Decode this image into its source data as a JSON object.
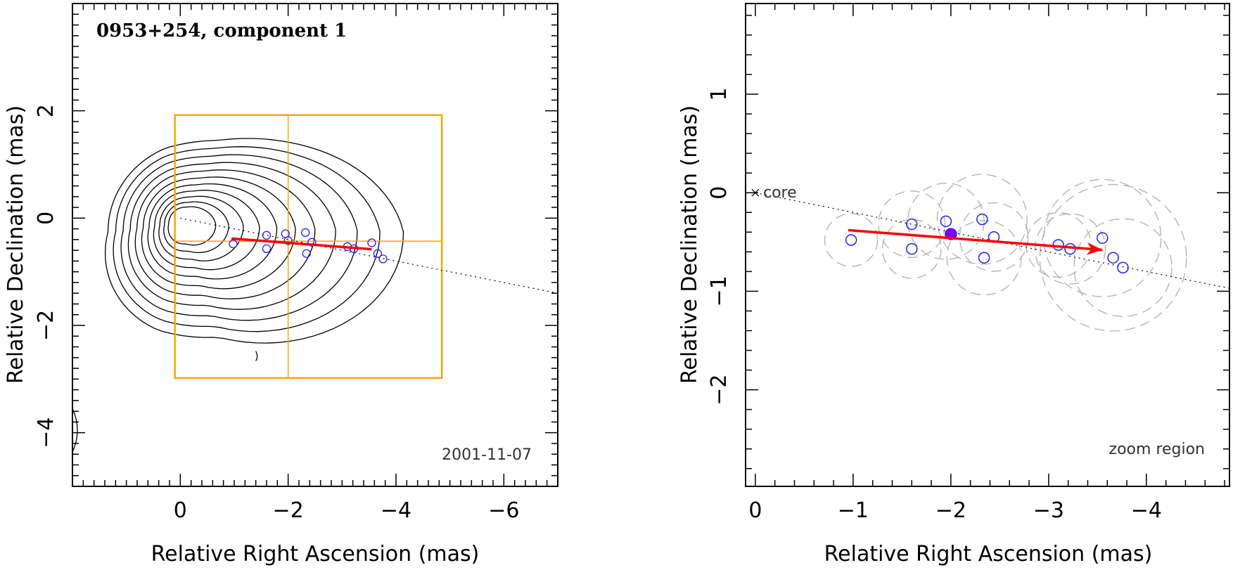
{
  "chart_data": [
    {
      "type": "scatter",
      "panel": "left",
      "title": "0953+254, component 1",
      "epoch": "2001-11-07",
      "xlabel": "Relative Right Ascension (mas)",
      "ylabel": "Relative Declination (mas)",
      "xlim": [
        2.0,
        -7.0
      ],
      "ylim": [
        -5.0,
        4.0
      ],
      "xticks": [
        0,
        -2,
        -4,
        -6
      ],
      "xtick_labels": [
        "0",
        "−2",
        "−4",
        "−6"
      ],
      "yticks": [
        -4,
        -2,
        0,
        2
      ],
      "ytick_labels": [
        "−4",
        "−2",
        "0",
        "2"
      ],
      "zoom_box": {
        "x": [
          0.1,
          -4.85
        ],
        "y": [
          -2.98,
          1.92
        ],
        "cross_x": -2.0,
        "cross_y": -0.43,
        "color": "#ffa500"
      },
      "jet_axis": {
        "from": [
          0.0,
          0.0
        ],
        "to": [
          -7.0,
          -1.4
        ]
      },
      "motion_arrow": {
        "from": [
          -0.95,
          -0.38
        ],
        "to": [
          -3.55,
          -0.58
        ],
        "color": "#ff0000"
      },
      "components": [
        {
          "x": -0.98,
          "y": -0.48
        },
        {
          "x": -1.6,
          "y": -0.32
        },
        {
          "x": -1.6,
          "y": -0.57
        },
        {
          "x": -1.95,
          "y": -0.29
        },
        {
          "x": -2.0,
          "y": -0.42
        },
        {
          "x": -2.32,
          "y": -0.27
        },
        {
          "x": -2.44,
          "y": -0.45
        },
        {
          "x": -2.34,
          "y": -0.66
        },
        {
          "x": -3.1,
          "y": -0.53
        },
        {
          "x": -3.22,
          "y": -0.57
        },
        {
          "x": -3.55,
          "y": -0.46
        },
        {
          "x": -3.66,
          "y": -0.66
        },
        {
          "x": -3.76,
          "y": -0.76
        }
      ],
      "contour_levels": 11
    },
    {
      "type": "scatter",
      "panel": "right",
      "xlabel": "Relative Right Ascension (mas)",
      "ylabel": "Relative Declination (mas)",
      "annotation": "zoom region",
      "core_label": "core",
      "xlim": [
        0.1,
        -4.85
      ],
      "ylim": [
        -2.98,
        1.92
      ],
      "xticks": [
        0,
        -1,
        -2,
        -3,
        -4
      ],
      "xtick_labels": [
        "0",
        "−1",
        "−2",
        "−3",
        "−4"
      ],
      "yticks": [
        -2,
        -1,
        0,
        1
      ],
      "ytick_labels": [
        "−2",
        "−1",
        "0",
        "1"
      ],
      "jet_axis": {
        "from": [
          0.0,
          0.0
        ],
        "to": [
          -4.85,
          -0.97
        ]
      },
      "motion_arrow": {
        "from": [
          -0.95,
          -0.38
        ],
        "to": [
          -3.55,
          -0.58
        ],
        "color": "#ff0000"
      },
      "mean_position": {
        "x": -2.0,
        "y": -0.42,
        "color": "#8000ff"
      },
      "components": [
        {
          "x": -0.98,
          "y": -0.48,
          "err": 0.27
        },
        {
          "x": -1.6,
          "y": -0.32,
          "err": 0.34
        },
        {
          "x": -1.6,
          "y": -0.57,
          "err": 0.3
        },
        {
          "x": -1.95,
          "y": -0.29,
          "err": 0.39
        },
        {
          "x": -2.32,
          "y": -0.27,
          "err": 0.46
        },
        {
          "x": -2.44,
          "y": -0.45,
          "err": 0.35
        },
        {
          "x": -2.34,
          "y": -0.66,
          "err": 0.38
        },
        {
          "x": -3.1,
          "y": -0.53,
          "err": 0.33
        },
        {
          "x": -3.22,
          "y": -0.57,
          "err": 0.36
        },
        {
          "x": -3.55,
          "y": -0.46,
          "err": 0.6
        },
        {
          "x": -3.66,
          "y": -0.66,
          "err": 0.75
        },
        {
          "x": -3.76,
          "y": -0.76,
          "err": 0.5
        }
      ]
    }
  ]
}
